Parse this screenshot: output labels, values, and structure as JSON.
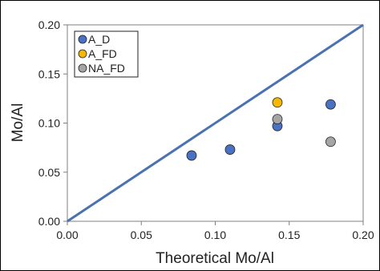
{
  "chart_data": {
    "type": "scatter",
    "xlabel": "Theoretical Mo/Al",
    "ylabel": "Mo/Al",
    "xlim": [
      0,
      0.2
    ],
    "ylim": [
      0,
      0.2
    ],
    "x_ticks": [
      "0.00",
      "0.05",
      "0.10",
      "0.15",
      "0.20"
    ],
    "y_ticks": [
      "0.00",
      "0.05",
      "0.10",
      "0.15",
      "0.20"
    ],
    "grid": false,
    "legend_position": "top-left",
    "reference_line": {
      "from": [
        0,
        0
      ],
      "to": [
        0.2,
        0.2
      ],
      "color": "#4a72b0"
    },
    "series": [
      {
        "name": "A_D",
        "color": "#4a72c4",
        "points": [
          [
            0.084,
            0.067
          ],
          [
            0.11,
            0.073
          ],
          [
            0.142,
            0.097
          ],
          [
            0.178,
            0.119
          ]
        ]
      },
      {
        "name": "A_FD",
        "color": "#f5b800",
        "points": [
          [
            0.142,
            0.121
          ]
        ]
      },
      {
        "name": "NA_FD",
        "color": "#a5a5a5",
        "points": [
          [
            0.142,
            0.104
          ],
          [
            0.178,
            0.081
          ]
        ]
      }
    ]
  }
}
